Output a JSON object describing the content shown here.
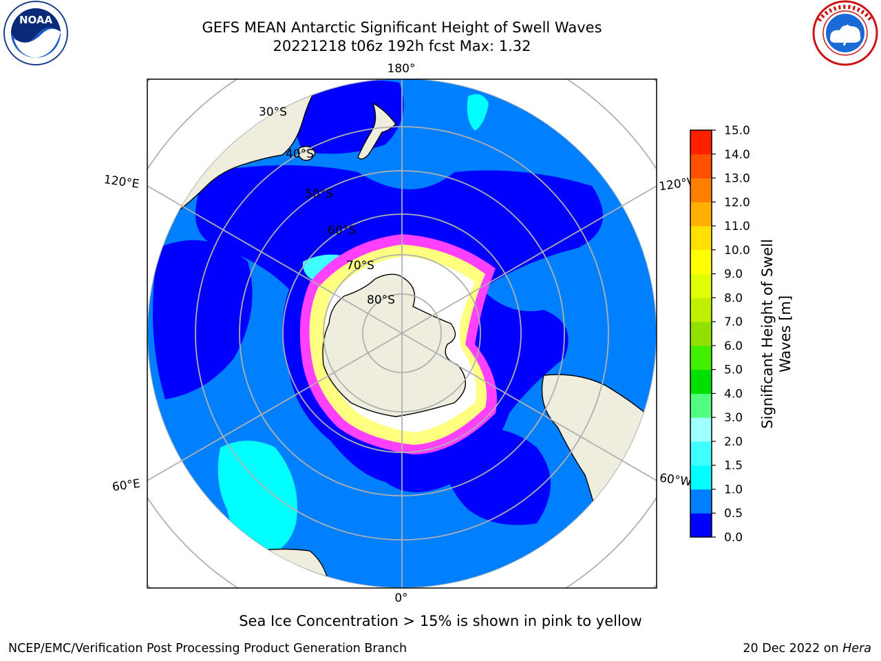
{
  "header": {
    "title_line1": "GEFS MEAN Antarctic Significant Height of Swell Waves",
    "title_line2": "20221218 t06z 192h fcst   Max: 1.32"
  },
  "logos": {
    "left": "noaa-logo",
    "left_text": "NOAA",
    "right": "nws-logo"
  },
  "map": {
    "projection": "south-polar-stereographic",
    "longitude_labels": {
      "top": "180°",
      "bottom": "0°",
      "upper_left": "120°E",
      "upper_right": "120°W",
      "lower_left": "60°E",
      "lower_right": "60°W"
    },
    "latitude_labels": [
      "30°S",
      "40°S",
      "50°S",
      "60°S",
      "70°S",
      "80°S"
    ],
    "colors": {
      "land": "#efedde",
      "ocean_0_0_5": "#0000ff",
      "ocean_0_5_1_0": "#0080ff",
      "ocean_1_0_1_5": "#00ffff",
      "sea_ice_low": "#ff40ff",
      "sea_ice_high": "#ffff80",
      "grid": "#b0b0b0"
    }
  },
  "colorbar": {
    "label_line1": "Significant Height of Swell",
    "label_line2": "Waves [m]",
    "ticks": [
      "0.0",
      "0.5",
      "1.0",
      "1.5",
      "2.0",
      "3.0",
      "4.0",
      "5.0",
      "6.0",
      "7.0",
      "8.0",
      "9.0",
      "10.0",
      "11.0",
      "12.0",
      "13.0",
      "14.0",
      "15.0"
    ],
    "colors": [
      "#0000ff",
      "#0080ff",
      "#00ffff",
      "#40ffff",
      "#a0ffff",
      "#50ff80",
      "#00e000",
      "#40f000",
      "#90e000",
      "#c0f000",
      "#e0ff00",
      "#ffff00",
      "#ffe000",
      "#ffb000",
      "#ff8000",
      "#ff5000",
      "#ff2000"
    ]
  },
  "footer": {
    "note": "Sea Ice Concentration > 15% is shown in pink to yellow",
    "left": "NCEP/EMC/Verification Post Processing Product Generation Branch",
    "right_date": "20 Dec 2022 on ",
    "right_host": "Hera"
  }
}
